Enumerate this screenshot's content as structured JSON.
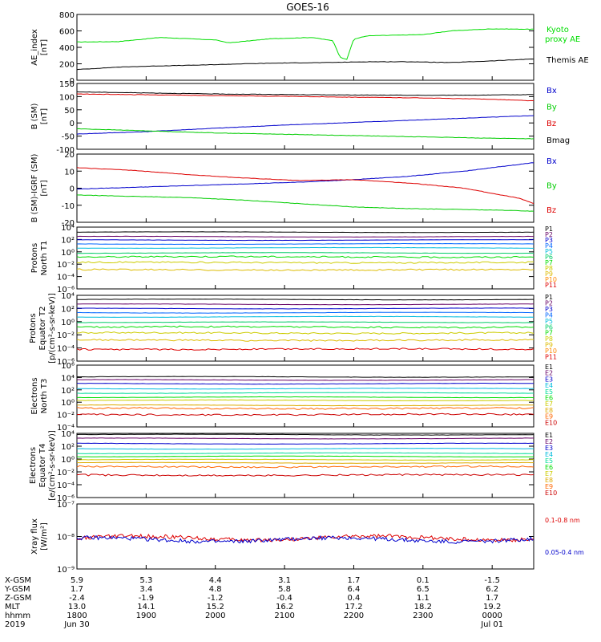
{
  "title": "GOES-16",
  "chart_data": [
    {
      "type": "line",
      "id": "ae",
      "ylabel": [
        "AE_index",
        "[nT]"
      ],
      "ylim": [
        0,
        800
      ],
      "yticks": [
        "800",
        "600",
        "400",
        "200",
        "0"
      ],
      "series": [
        {
          "name": "Kyoto",
          "name2": "proxy AE",
          "color": "#00dd00",
          "x": [
            0,
            0.3,
            0.6,
            1.0,
            1.1,
            1.4,
            1.7,
            1.85,
            1.9,
            1.95,
            2.0,
            2.1,
            2.5,
            2.7,
            3.0,
            3.3
          ],
          "y": [
            465,
            470,
            520,
            490,
            455,
            505,
            520,
            480,
            280,
            255,
            500,
            540,
            555,
            600,
            625,
            620
          ]
        },
        {
          "name": "Themis AE",
          "color": "#000000",
          "x": [
            0,
            0.3,
            0.6,
            0.9,
            1.2,
            1.5,
            1.8,
            2.1,
            2.4,
            2.7,
            3.0,
            3.3
          ],
          "y": [
            130,
            160,
            175,
            185,
            200,
            210,
            215,
            225,
            225,
            215,
            235,
            260
          ]
        }
      ]
    },
    {
      "type": "line",
      "id": "bgsm",
      "ylabel": [
        "B (SM)",
        "[nT]"
      ],
      "ylim": [
        -100,
        150
      ],
      "yticks": [
        "150",
        "100",
        "50",
        "0",
        "-50",
        "-100"
      ],
      "series": [
        {
          "name": "Bx",
          "color": "#0000cc",
          "x": [
            0,
            0.5,
            1.0,
            1.5,
            2.0,
            2.5,
            3.0,
            3.3
          ],
          "y": [
            -42,
            -33,
            -20,
            -8,
            2,
            12,
            22,
            28
          ]
        },
        {
          "name": "By",
          "color": "#00cc00",
          "x": [
            0,
            0.5,
            1.0,
            1.5,
            2.0,
            2.5,
            3.0,
            3.3
          ],
          "y": [
            -22,
            -30,
            -38,
            -43,
            -48,
            -53,
            -58,
            -60
          ]
        },
        {
          "name": "Bz",
          "color": "#dd0000",
          "x": [
            0,
            0.5,
            1.0,
            1.5,
            2.0,
            2.5,
            3.0,
            3.3
          ],
          "y": [
            110,
            107,
            104,
            101,
            98,
            95,
            90,
            84
          ]
        },
        {
          "name": "Bmag",
          "color": "#000000",
          "x": [
            0,
            0.5,
            1.0,
            1.5,
            2.0,
            2.5,
            3.0,
            3.3
          ],
          "y": [
            118,
            114,
            110,
            108,
            106,
            105,
            106,
            108
          ]
        }
      ]
    },
    {
      "type": "line",
      "id": "bigrf",
      "ylabel": [
        "B (SM)-IGRF (SM)",
        "[nT]"
      ],
      "ylim": [
        -20,
        20
      ],
      "yticks": [
        "20",
        "10",
        "0",
        "-10",
        "-20"
      ],
      "series": [
        {
          "name": "Bx",
          "color": "#0000cc",
          "x": [
            0,
            0.4,
            0.8,
            1.2,
            1.6,
            2.0,
            2.4,
            2.8,
            3.1,
            3.3
          ],
          "y": [
            -0.5,
            0.5,
            1.5,
            2.5,
            3.5,
            5,
            7,
            10,
            13,
            15
          ]
        },
        {
          "name": "By",
          "color": "#00cc00",
          "x": [
            0,
            0.4,
            0.8,
            1.2,
            1.6,
            2.0,
            2.4,
            2.8,
            3.1,
            3.3
          ],
          "y": [
            -4,
            -4.8,
            -5.5,
            -7,
            -9,
            -11,
            -12,
            -12.5,
            -13,
            -13.5
          ]
        },
        {
          "name": "Bz",
          "color": "#dd0000",
          "x": [
            0,
            0.4,
            0.8,
            1.2,
            1.6,
            2.0,
            2.4,
            2.8,
            3.0,
            3.2,
            3.3
          ],
          "y": [
            12,
            10.5,
            8,
            6,
            4.5,
            5,
            3,
            0,
            -3,
            -6,
            -9
          ]
        }
      ]
    },
    {
      "type": "line",
      "id": "pn",
      "log": true,
      "ylabel": [
        "Protons",
        "North T1"
      ],
      "ylim": [
        -7,
        4
      ],
      "yticks": [
        "10⁴",
        "10²",
        "10⁰",
        "10⁻²",
        "10⁻⁴",
        "10⁻⁶"
      ],
      "series": [
        {
          "name": "P1",
          "color": "#000000",
          "level": 3.1
        },
        {
          "name": "P2",
          "color": "#660066",
          "level": 2.3
        },
        {
          "name": "P3",
          "color": "#0000cc",
          "level": 1.7
        },
        {
          "name": "P4",
          "color": "#0066ff",
          "level": 1.0
        },
        {
          "name": "P5",
          "color": "#00bbdd",
          "level": 0.3
        },
        {
          "name": "P6",
          "color": "#00cc66",
          "level": -0.6
        },
        {
          "name": "P7",
          "color": "#00dd00",
          "level": -1.3
        },
        {
          "name": "P8",
          "color": "#cccc00",
          "level": -2.3
        },
        {
          "name": "P9",
          "color": "#ddbb00",
          "level": -3.6
        },
        {
          "name": "P10",
          "color": "#ff8800",
          "level": null
        },
        {
          "name": "P11",
          "color": "#dd0000",
          "level": null
        }
      ]
    },
    {
      "type": "line",
      "id": "pe",
      "log": true,
      "ylabel": [
        "Protons",
        "Equator T2",
        "[p/(cm²-s-sr-keV)]"
      ],
      "ylim": [
        -7,
        4
      ],
      "yticks": [
        "10⁴",
        "10²",
        "10⁰",
        "10⁻²",
        "10⁻⁴",
        "10⁻⁶"
      ],
      "series": [
        {
          "name": "P1",
          "color": "#000000",
          "level": 3.3
        },
        {
          "name": "P2",
          "color": "#660066",
          "level": 2.5
        },
        {
          "name": "P3",
          "color": "#0000cc",
          "level": 1.8
        },
        {
          "name": "P4",
          "color": "#0066ff",
          "level": 1.1
        },
        {
          "name": "P5",
          "color": "#00bbdd",
          "level": 0.4
        },
        {
          "name": "P6",
          "color": "#00cc66",
          "level": -0.5
        },
        {
          "name": "P7",
          "color": "#00dd00",
          "level": -1.3
        },
        {
          "name": "P8",
          "color": "#cccc00",
          "level": -2.3
        },
        {
          "name": "P9",
          "color": "#ddbb00",
          "level": -3.5
        },
        {
          "name": "P10",
          "color": "#ff8800",
          "level": null
        },
        {
          "name": "P11",
          "color": "#dd0000",
          "level": -5.0
        }
      ]
    },
    {
      "type": "line",
      "id": "en",
      "log": true,
      "ylabel": [
        "Electrons",
        "North T3"
      ],
      "ylim": [
        -4,
        6
      ],
      "yticks": [
        "10⁶",
        "10⁴",
        "10²",
        "10⁰",
        "10⁻²",
        "10⁻⁴"
      ],
      "series": [
        {
          "name": "E1",
          "color": "#000000",
          "level": 4.1
        },
        {
          "name": "E2",
          "color": "#660066",
          "level": 3.6
        },
        {
          "name": "E3",
          "color": "#0000cc",
          "level": 3.0
        },
        {
          "name": "E4",
          "color": "#00bbdd",
          "level": 2.2
        },
        {
          "name": "E5",
          "color": "#00dd99",
          "level": 1.5
        },
        {
          "name": "E6",
          "color": "#00dd00",
          "level": 0.8
        },
        {
          "name": "E7",
          "color": "#cccc00",
          "level": 0.3
        },
        {
          "name": "E8",
          "color": "#ddaa00",
          "level": -0.5
        },
        {
          "name": "E9",
          "color": "#ff6600",
          "level": -1.0
        },
        {
          "name": "E10",
          "color": "#cc0000",
          "level": -2.0
        }
      ]
    },
    {
      "type": "line",
      "id": "ee",
      "log": true,
      "ylabel": [
        "Electrons",
        "Equator T4",
        "[e/(cm²-s-sr-keV)]"
      ],
      "ylim": [
        -6,
        4
      ],
      "yticks": [
        "10⁴",
        "10²",
        "10⁰",
        "10⁻²",
        "10⁻⁴",
        "10⁻⁶"
      ],
      "series": [
        {
          "name": "E1",
          "color": "#000000",
          "level": 3.8
        },
        {
          "name": "E2",
          "color": "#660066",
          "level": 3.2
        },
        {
          "name": "E3",
          "color": "#0000cc",
          "level": 2.4
        },
        {
          "name": "E4",
          "color": "#00bbdd",
          "level": 1.6
        },
        {
          "name": "E5",
          "color": "#00dd99",
          "level": 0.9
        },
        {
          "name": "E6",
          "color": "#00dd00",
          "level": 0.4
        },
        {
          "name": "E7",
          "color": "#cccc00",
          "level": -0.1
        },
        {
          "name": "E8",
          "color": "#ddaa00",
          "level": -0.6
        },
        {
          "name": "E9",
          "color": "#ff6600",
          "level": -1.2
        },
        {
          "name": "E10",
          "color": "#cc0000",
          "level": -2.5
        }
      ]
    },
    {
      "type": "line",
      "id": "xray",
      "log": true,
      "ylabel": [
        "Xray flux",
        "[W/m²]"
      ],
      "ylim": [
        -9,
        -7
      ],
      "yticks": [
        "10⁻⁷",
        "10⁻⁸",
        "10⁻⁹"
      ],
      "series": [
        {
          "name": "0.1-0.8 nm",
          "color": "#dd0000",
          "level": -8.05
        },
        {
          "name": "0.05-0.4 nm",
          "color": "#0000cc",
          "level": -8.1
        }
      ]
    }
  ],
  "x_axis": {
    "xlim": [
      0,
      3.3
    ],
    "labels": [
      "X-GSM",
      "Y-GSM",
      "Z-GSM",
      "MLT",
      "hhmm",
      "2019"
    ],
    "columns": [
      {
        "x": 0.0,
        "values": [
          "5.9",
          "1.7",
          "-2.4",
          "13.0",
          "1800",
          "Jun 30"
        ]
      },
      {
        "x": 0.5,
        "values": [
          "5.3",
          "3.4",
          "-1.9",
          "14.1",
          "1900",
          ""
        ]
      },
      {
        "x": 1.0,
        "values": [
          "4.4",
          "4.8",
          "-1.2",
          "15.2",
          "2000",
          ""
        ]
      },
      {
        "x": 1.5,
        "values": [
          "3.1",
          "5.8",
          "-0.4",
          "16.2",
          "2100",
          ""
        ]
      },
      {
        "x": 2.0,
        "values": [
          "1.7",
          "6.4",
          "0.4",
          "17.2",
          "2200",
          ""
        ]
      },
      {
        "x": 2.5,
        "values": [
          "0.1",
          "6.5",
          "1.1",
          "18.2",
          "2300",
          ""
        ]
      },
      {
        "x": 3.0,
        "values": [
          "-1.5",
          "6.2",
          "1.7",
          "19.2",
          "0000",
          "Jul 01"
        ]
      }
    ]
  }
}
